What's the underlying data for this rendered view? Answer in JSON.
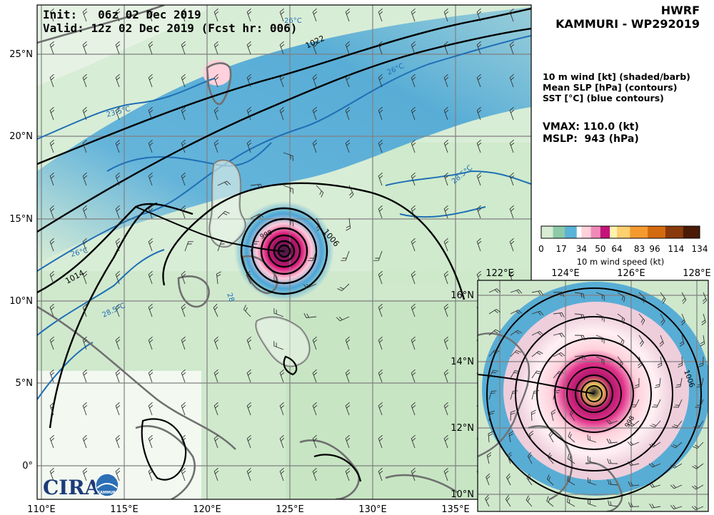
{
  "header": {
    "model": "HWRF",
    "storm": "KAMMURI - WP292019"
  },
  "run": {
    "init_label": "Init:",
    "init_value": "06z 02 Dec 2019",
    "valid_label": "Valid:",
    "valid_value": "12z 02 Dec 2019 (Fcst hr: 006)"
  },
  "legend": {
    "line1": "10 m wind [kt] (shaded/barb)",
    "line2": "Mean SLP [hPa] (contours)",
    "line3": "SST [°C] (blue contours)"
  },
  "stats": {
    "vmax_label": "VMAX:",
    "vmax_value": "110.0",
    "vmax_unit": "(kt)",
    "mslp_label": "MSLP:",
    "mslp_value": "943",
    "mslp_unit": "(hPa)"
  },
  "colorbar": {
    "title": "10 m wind speed (kt)",
    "ticks": [
      "0",
      "17",
      "34",
      "50",
      "64",
      "83",
      "96",
      "114",
      "134"
    ],
    "tick_values": [
      0,
      17,
      34,
      50,
      64,
      83,
      96,
      114,
      134
    ],
    "colors": [
      "#ffffff",
      "#a8d8a8",
      "#4aa6d6",
      "#ffd1dc",
      "#d81b7a",
      "#ffe08a",
      "#f79b2e",
      "#c45a0a",
      "#5a2a0a"
    ]
  },
  "main_map": {
    "lon_labels": [
      "110°E",
      "115°E",
      "120°E",
      "125°E",
      "130°E",
      "135°E"
    ],
    "lat_labels": [
      "25°N",
      "20°N",
      "15°N",
      "10°N",
      "5°N",
      "0°"
    ],
    "slp_labels": [
      "1022",
      "1014",
      "1006",
      "998"
    ],
    "sst_labels": [
      "26°C",
      "23.5°C",
      "26°C",
      "28.5°C",
      "26°C",
      "28.5°C",
      "28"
    ],
    "lon_range": [
      110,
      138
    ],
    "lat_range": [
      -2,
      28
    ],
    "center": {
      "lon": 125.0,
      "lat": 12.8
    }
  },
  "inset_map": {
    "lon_labels": [
      "122°E",
      "124°E",
      "126°E",
      "128°E"
    ],
    "lat_labels": [
      "16°N",
      "14°N",
      "12°N",
      "10°N"
    ],
    "slp_labels": [
      "1006",
      "998"
    ]
  },
  "logo": {
    "text": "CIRA",
    "sub": "KAMMURI"
  }
}
